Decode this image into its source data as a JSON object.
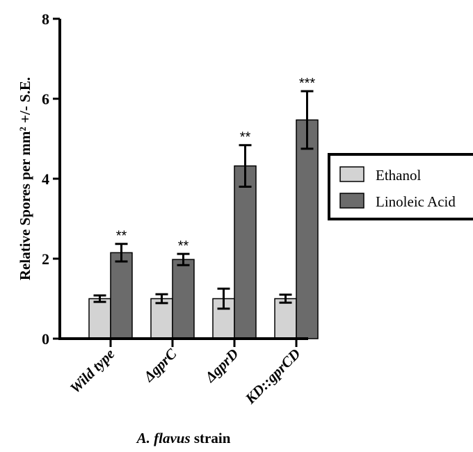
{
  "chart_data": {
    "type": "bar",
    "categories": [
      "Wild type",
      "ΔgprC",
      "ΔgprD",
      "KD::gprCD"
    ],
    "series": [
      {
        "name": "Ethanol",
        "color": "#d3d3d3",
        "values": [
          1.0,
          1.0,
          1.0,
          1.0
        ],
        "errors": [
          0.08,
          0.11,
          0.25,
          0.1
        ]
      },
      {
        "name": "Linoleic Acid",
        "color": "#6b6b6b",
        "values": [
          2.15,
          1.98,
          4.32,
          5.47
        ],
        "errors": [
          0.22,
          0.14,
          0.52,
          0.72
        ]
      }
    ],
    "significance": [
      "**",
      "**",
      "**",
      "***"
    ],
    "xlabel": "A. flavus strain",
    "ylabel": "Relative Spores per mm² +/- S.E.",
    "ylim": [
      0,
      8
    ],
    "yticks": [
      0,
      2,
      4,
      6,
      8
    ],
    "ytick_labels": [
      "0",
      "2",
      "4",
      "6",
      "8"
    ],
    "grid": false,
    "legend_position": "right"
  }
}
